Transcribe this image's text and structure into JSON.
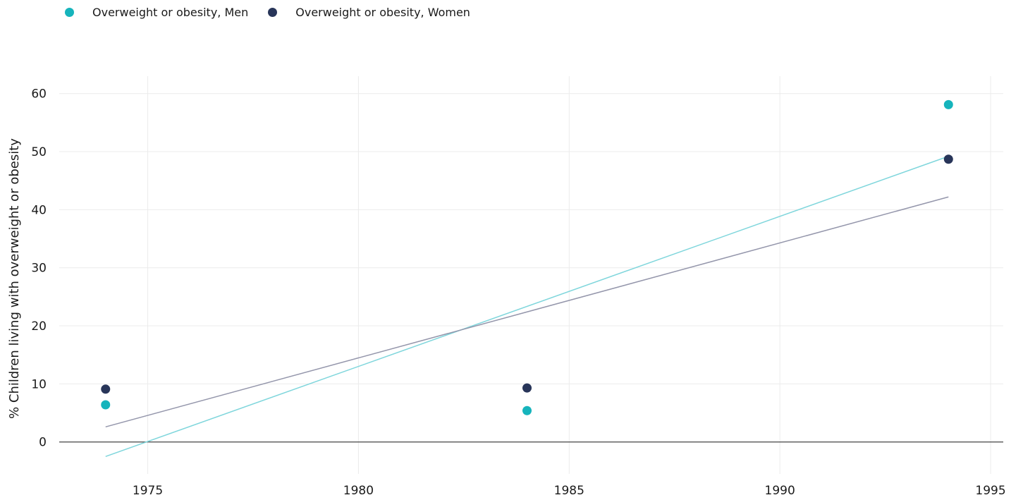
{
  "chart_data": {
    "type": "scatter",
    "title": "",
    "xlabel": "",
    "ylabel": "% Children living with overweight or obesity",
    "xlim": [
      1972.9,
      1995.3
    ],
    "ylim": [
      -5.5,
      63
    ],
    "x_ticks": [
      1975,
      1980,
      1985,
      1990,
      1995
    ],
    "y_ticks": [
      0,
      10,
      20,
      30,
      40,
      50,
      60
    ],
    "grid": true,
    "legend_position": "top-left",
    "series": [
      {
        "name": "Overweight or obesity, Men",
        "color": "#16b4bc",
        "trend_color": "#7fd6dc",
        "points": [
          {
            "x": 1974,
            "y": 6.4
          },
          {
            "x": 1984,
            "y": 5.4
          },
          {
            "x": 1994,
            "y": 58.1
          }
        ],
        "trend": [
          {
            "x": 1974,
            "y": -2.5
          },
          {
            "x": 1994,
            "y": 49.2
          }
        ]
      },
      {
        "name": "Overweight or obesity, Women",
        "color": "#283559",
        "trend_color": "#9496ab",
        "points": [
          {
            "x": 1974,
            "y": 9.1
          },
          {
            "x": 1984,
            "y": 9.3
          },
          {
            "x": 1994,
            "y": 48.7
          }
        ],
        "trend": [
          {
            "x": 1974,
            "y": 2.6
          },
          {
            "x": 1994,
            "y": 42.2
          }
        ]
      }
    ]
  }
}
